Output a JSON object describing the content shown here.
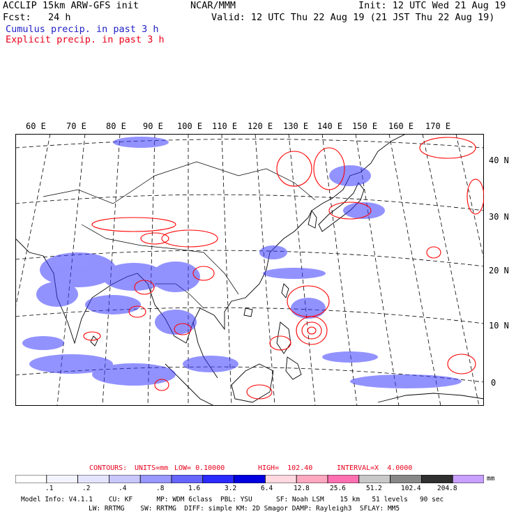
{
  "header": {
    "line1_left": "ACCLIP 15km ARW-GFS init",
    "line1_center": "NCAR/MMM",
    "line1_right": "Init: 12 UTC Wed 21 Aug 19",
    "line2_left": "Fcst:   24 h",
    "line2_right": "Valid: 12 UTC Thu 22 Aug 19 (21 JST Thu 22 Aug 19)",
    "legend_cumulus": "Cumulus precip. in past 3 h",
    "legend_explicit": "Explicit precip. in past 3 h"
  },
  "map": {
    "lon_labels": [
      "60 E",
      "70 E",
      "80 E",
      "90 E",
      "100 E",
      "110 E",
      "120 E",
      "130 E",
      "140 E",
      "150 E",
      "160 E",
      "170 E"
    ],
    "lat_labels": [
      "40 N",
      "30 N",
      "20 N",
      "10 N",
      "0"
    ],
    "colors": {
      "cumulus": "#2222ff",
      "explicit": "#ff0000",
      "coast": "#000000"
    }
  },
  "contours": {
    "label": "CONTOURS:",
    "units": "UNITS=mm",
    "low": "LOW= 0.10000",
    "high": "HIGH=  102.40",
    "interval": "INTERVAL=X  4.0000"
  },
  "colorbar": {
    "colors": [
      "#ffffff",
      "#f4f4ff",
      "#e4e4ff",
      "#c8c8ff",
      "#9898ff",
      "#6666ff",
      "#2a2aff",
      "#0000e0",
      "#ffd8e0",
      "#ffa8c0",
      "#ff70b0",
      "#c8c8c8",
      "#888888",
      "#303030",
      "#c8a0ff"
    ],
    "values": [
      ".1",
      ".2",
      ".4",
      ".8",
      "1.6",
      "3.2",
      "6.4",
      "12.8",
      "25.6",
      "51.2",
      "102.4",
      "204.8"
    ],
    "unit": "mm"
  },
  "footer": {
    "line1": "Model Info: V4.1.1    CU: KF      MP: WDM 6class  PBL: YSU      SF: Noah LSM    15 km   51 levels   90 sec",
    "line2": "LW: RRTMG    SW: RRTMG  DIFF: simple KM: 2D Smagor DAMP: Rayleigh3  SFLAY: MM5"
  }
}
